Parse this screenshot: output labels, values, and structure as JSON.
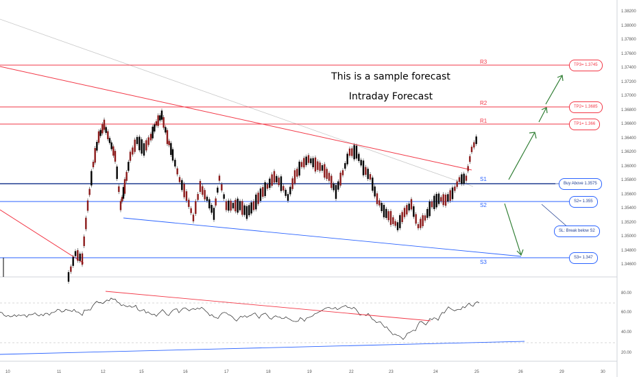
{
  "heading": "This is a sample forecast",
  "subheading": "Intraday Forecast",
  "levels": {
    "r3": "R3",
    "r2": "R2",
    "r1": "R1",
    "s1": "S1",
    "s2": "S2",
    "s3": "S3"
  },
  "callouts": {
    "tp3": "TP3= 1.3745",
    "tp2": "TP2= 1.3685",
    "tp1": "TP1= 1.366",
    "buy": "Buy Above 1.3575",
    "s2": "S2= 1.355",
    "sl": "SL: Break below S2",
    "s3": "S3= 1.347"
  },
  "price_axis": [
    "1.38200",
    "1.38000",
    "1.37800",
    "1.37600",
    "1.37400",
    "1.37200",
    "1.37000",
    "1.36800",
    "1.36600",
    "1.36400",
    "1.36200",
    "1.36000",
    "1.35800",
    "1.35600",
    "1.35400",
    "1.35200",
    "1.35000",
    "1.34800",
    "1.34600"
  ],
  "rsi_axis": [
    "80.00",
    "60.00",
    "40.00",
    "20.00"
  ],
  "date_axis": [
    "10",
    "11",
    "12",
    "15",
    "16",
    "17",
    "18",
    "19",
    "22",
    "23",
    "24",
    "25",
    "26",
    "29",
    "30"
  ],
  "colors": {
    "resistance": "#f23645",
    "support": "#1e3c90",
    "support_light": "#2962ff",
    "arrow": "#2e7d32",
    "candle_up": "#000000",
    "candle_down": "#8b1a1a"
  }
}
